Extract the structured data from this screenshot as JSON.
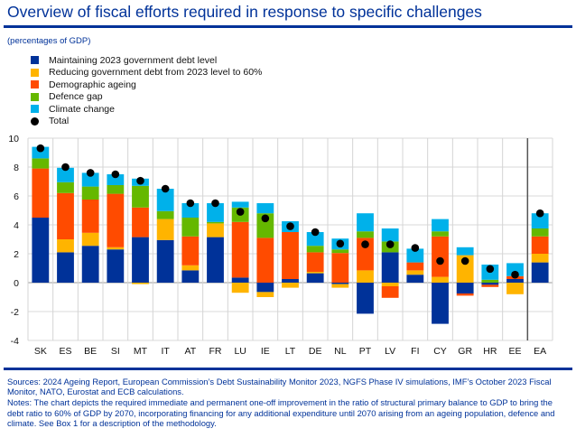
{
  "title": "Overview of fiscal efforts required in response to specific challenges",
  "subtitle": "(percentages of GDP)",
  "legend": [
    {
      "label": "Maintaining 2023 government debt level",
      "color": "#003299",
      "kind": "square"
    },
    {
      "label": "Reducing government debt from 2023 level to 60%",
      "color": "#FFB400",
      "kind": "square"
    },
    {
      "label": "Demographic ageing",
      "color": "#FF4B00",
      "kind": "square"
    },
    {
      "label": "Defence gap",
      "color": "#65B800",
      "kind": "square"
    },
    {
      "label": "Climate change",
      "color": "#00B1EA",
      "kind": "square"
    },
    {
      "label": "Total",
      "color": "#000000",
      "kind": "dot"
    }
  ],
  "chart_data": {
    "type": "bar",
    "stacked": true,
    "title": "Overview of fiscal efforts required in response to specific challenges",
    "xlabel": "",
    "ylabel": "percentages of GDP",
    "ylim": [
      -4,
      10
    ],
    "yticks": [
      10,
      8,
      6,
      4,
      2,
      0,
      -2,
      -4
    ],
    "grid": true,
    "legend_position": "top-left",
    "categories": [
      "SK",
      "ES",
      "BE",
      "SI",
      "MT",
      "IT",
      "AT",
      "FR",
      "LU",
      "IE",
      "LT",
      "DE",
      "NL",
      "PT",
      "LV",
      "FI",
      "CY",
      "GR",
      "HR",
      "EE",
      "EA"
    ],
    "series": [
      {
        "name": "Maintaining 2023 government debt level",
        "color": "#003299",
        "values": [
          4.5,
          2.1,
          2.55,
          2.3,
          3.15,
          2.95,
          0.85,
          3.15,
          0.35,
          -0.65,
          0.25,
          0.65,
          -0.1,
          -2.15,
          2.1,
          0.55,
          -2.85,
          -0.75,
          -0.15,
          0.25,
          1.4
        ]
      },
      {
        "name": "Reducing government debt from 2023 level to 60%",
        "color": "#FFB400",
        "values": [
          0,
          0.9,
          0.9,
          0.15,
          -0.1,
          1.45,
          0.35,
          0.95,
          -0.7,
          -0.35,
          -0.35,
          0.1,
          -0.25,
          0.85,
          -0.25,
          0.3,
          0.4,
          1.9,
          0,
          -0.8,
          0.6
        ]
      },
      {
        "name": "Demographic ageing",
        "color": "#FF4B00",
        "values": [
          3.4,
          3.2,
          2.3,
          3.7,
          2.05,
          0,
          2.0,
          0,
          3.85,
          3.1,
          3.25,
          1.35,
          2.05,
          2.25,
          -0.8,
          0.55,
          2.8,
          -0.15,
          -0.15,
          0.2,
          1.2
        ]
      },
      {
        "name": "Defence gap",
        "color": "#65B800",
        "values": [
          0.7,
          0.75,
          0.9,
          0.6,
          1.5,
          0.55,
          1.3,
          0.1,
          1.0,
          1.7,
          0,
          0.45,
          0.25,
          0.45,
          0.75,
          0,
          0.35,
          0,
          0.2,
          0,
          0.55
        ]
      },
      {
        "name": "Climate change",
        "color": "#00B1EA",
        "values": [
          0.8,
          1.0,
          0.95,
          0.75,
          0.5,
          1.55,
          1.0,
          1.3,
          0.4,
          0.7,
          0.75,
          0.95,
          0.75,
          1.25,
          0.9,
          0.95,
          0.85,
          0.55,
          1.05,
          0.9,
          1.05
        ]
      }
    ],
    "total": {
      "name": "Total",
      "color": "#000000",
      "values": [
        9.3,
        8.0,
        7.6,
        7.5,
        7.05,
        6.5,
        5.5,
        5.5,
        4.9,
        4.45,
        3.9,
        3.5,
        2.7,
        2.65,
        2.65,
        2.4,
        1.5,
        1.5,
        0.95,
        0.55,
        4.8
      ]
    },
    "separator_before": "EA"
  },
  "notes": {
    "sources": "Sources: 2024 Ageing Report, European Commission’s Debt Sustainability Monitor 2023, NGFS Phase IV simulations, IMF’s October 2023 Fiscal Monitor, NATO, Eurostat and ECB calculations.",
    "notes": "Notes: The chart depicts the required immediate and permanent one-off improvement in the ratio of structural primary balance to GDP to bring the debt ratio to 60% of GDP by 2070, incorporating financing for any additional expenditure until 2070 arising from an ageing population, defence and climate. See Box 1 for a description of the methodology."
  }
}
